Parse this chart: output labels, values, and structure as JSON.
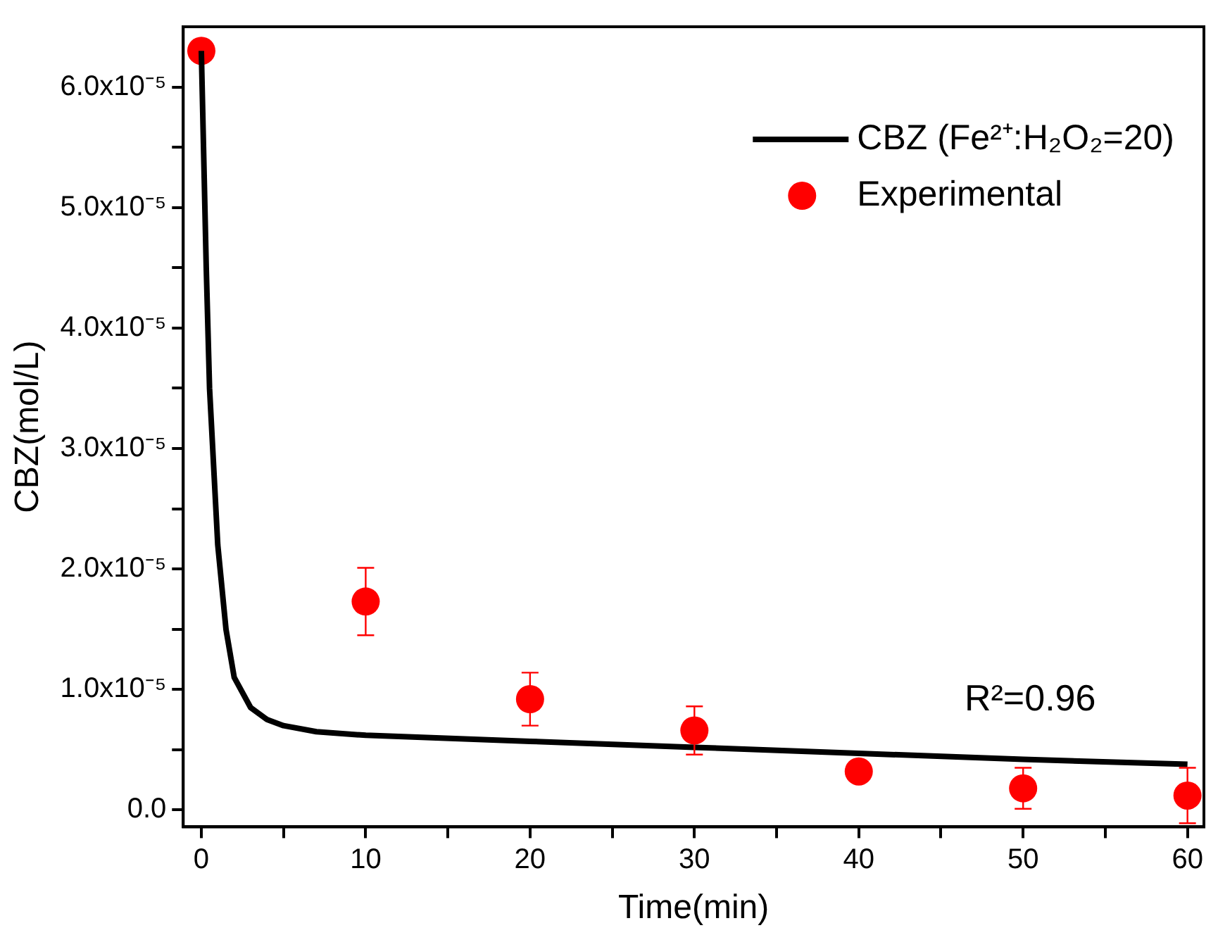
{
  "chart_data": {
    "type": "line",
    "xlabel": "Time(min)",
    "ylabel": "CBZ(mol/L)",
    "xlim": [
      -1.1,
      61
    ],
    "xticks": [
      0,
      {
        "value": 5,
        "label": null
      },
      10,
      {
        "value": 15,
        "label": null
      },
      20,
      {
        "value": 25,
        "label": null
      },
      30,
      {
        "value": 35,
        "label": null
      },
      40,
      {
        "value": 45,
        "label": null
      },
      50,
      {
        "value": 55,
        "label": null
      },
      60
    ],
    "ylim": [
      -1.4e-06,
      6.5e-05
    ],
    "yticks": [
      {
        "value": 0,
        "label": "0.0"
      },
      {
        "value": 5e-06,
        "label": null
      },
      {
        "value": 1e-05,
        "label": "1.0x10⁻⁵"
      },
      {
        "value": 1.5e-05,
        "label": null
      },
      {
        "value": 2e-05,
        "label": "2.0x10⁻⁵"
      },
      {
        "value": 2.5e-05,
        "label": null
      },
      {
        "value": 3e-05,
        "label": "3.0x10⁻⁵"
      },
      {
        "value": 3.5e-05,
        "label": null
      },
      {
        "value": 4e-05,
        "label": "4.0x10⁻⁵"
      },
      {
        "value": 4.5e-05,
        "label": null
      },
      {
        "value": 5e-05,
        "label": "5.0x10⁻⁵"
      },
      {
        "value": 5.5e-05,
        "label": null
      },
      {
        "value": 6e-05,
        "label": "6.0x10⁻⁵"
      }
    ],
    "grid": false,
    "legend": "top right",
    "annotations": [
      "R²=0.96"
    ],
    "series": [
      {
        "name": "CBZ (Fe²⁺:H₂O₂=20)",
        "type": "line",
        "color": "#000000",
        "marker": "none",
        "line_style": "solid",
        "x": [
          0,
          0.3,
          0.5,
          1,
          1.5,
          2,
          3,
          4,
          5,
          7,
          10,
          20,
          30,
          40,
          50,
          60
        ],
        "values": [
          6.3e-05,
          4.5e-05,
          3.5e-05,
          2.2e-05,
          1.5e-05,
          1.1e-05,
          8.5e-06,
          7.5e-06,
          7e-06,
          6.5e-06,
          6.2e-06,
          5.7e-06,
          5.2e-06,
          4.7e-06,
          4.2e-06,
          3.8e-06
        ]
      },
      {
        "name": "Experimental",
        "type": "scatter",
        "color": "#ff0000",
        "marker": "circle",
        "x": [
          0,
          10,
          20,
          30,
          40,
          50,
          60
        ],
        "values": [
          6.3e-05,
          1.73e-05,
          9.2e-06,
          6.6e-06,
          3.2e-06,
          1.8e-06,
          1.2e-06
        ],
        "errors": [
          null,
          2.8e-06,
          2.2e-06,
          2e-06,
          null,
          1.7e-06,
          2.3e-06
        ]
      }
    ]
  }
}
